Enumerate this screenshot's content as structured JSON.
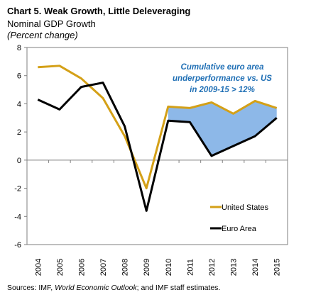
{
  "header": {
    "title": "Chart 5. Weak Growth, Little Deleveraging",
    "subtitle": "Nominal GDP Growth",
    "unit": "(Percent change)"
  },
  "source": {
    "prefix": "Sources: IMF, ",
    "italic": "World Economic Outlook",
    "suffix": "; and IMF staff estimates."
  },
  "colors": {
    "us": "#d4a017",
    "euro": "#000000",
    "fill": "#8db8e8",
    "annotation": "#1f6fb5",
    "axis": "#7f7f7f"
  },
  "chart_data": {
    "type": "line",
    "x": [
      "2004",
      "2005",
      "2006",
      "2007",
      "2008",
      "2009",
      "2010",
      "2011",
      "2012",
      "2013",
      "2014",
      "2015"
    ],
    "ylim": [
      -6,
      8
    ],
    "yticks": [
      "-6",
      "-4",
      "-2",
      "0",
      "2",
      "4",
      "6",
      "8"
    ],
    "series": [
      {
        "name": "United States",
        "values": [
          6.6,
          6.7,
          5.8,
          4.4,
          1.7,
          -2.0,
          3.8,
          3.7,
          4.1,
          3.3,
          4.2,
          3.7
        ]
      },
      {
        "name": "Euro Area",
        "values": [
          4.3,
          3.6,
          5.2,
          5.5,
          2.4,
          -3.6,
          2.8,
          2.7,
          0.3,
          1.0,
          1.7,
          3.0
        ]
      }
    ],
    "shaded_region": {
      "between": [
        "United States",
        "Euro Area"
      ],
      "from": "2010",
      "to": "2015"
    },
    "annotation": [
      "Cumulative euro area",
      "underperformance vs. US",
      "in 2009-15 > 12%"
    ],
    "legend_position": "bottom-right",
    "grid": false
  }
}
